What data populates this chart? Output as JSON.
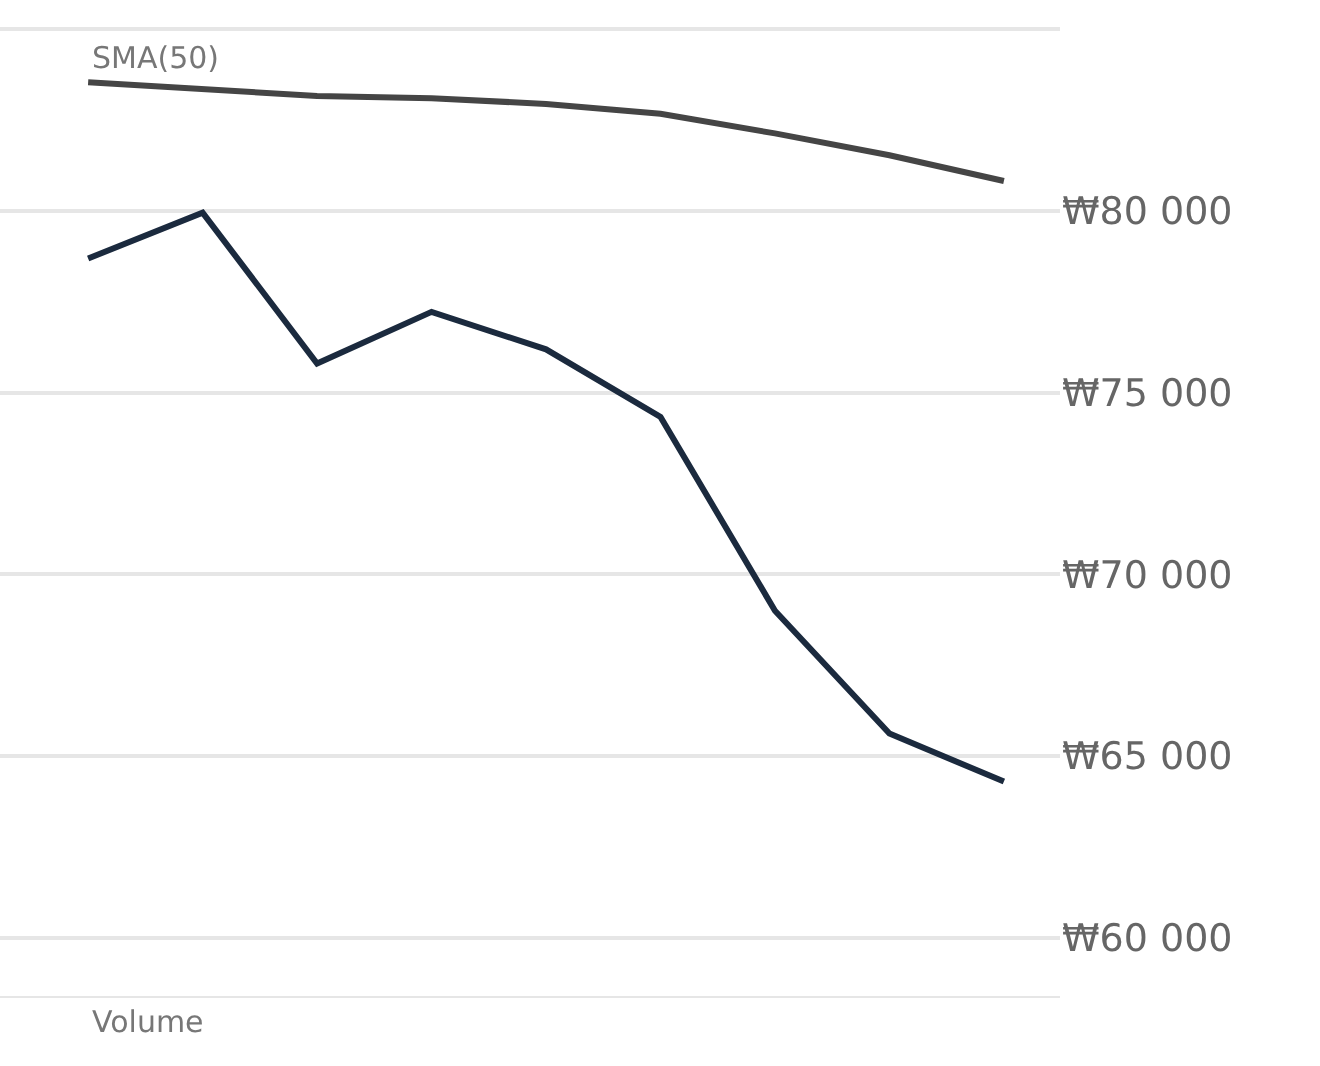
{
  "chart_data": {
    "type": "line",
    "categories": [
      null,
      null,
      null,
      null,
      null,
      null,
      null,
      null,
      null
    ],
    "series": [
      {
        "name": "SMA(50)",
        "color": "#454545",
        "values": [
          83540,
          null,
          83160,
          83100,
          82940,
          82670,
          82130,
          81530,
          80820
        ]
      },
      {
        "color": "#1b2a3e",
        "values": [
          78690,
          79950,
          75800,
          77220,
          76190,
          74330,
          69000,
          65620,
          64300
        ]
      }
    ],
    "ylim": [
      58400,
      85800
    ],
    "yticks": [
      {
        "value": 60000,
        "label": "₩60 000"
      },
      {
        "value": 65000,
        "label": "₩65 000"
      },
      {
        "value": 70000,
        "label": "₩70 000"
      },
      {
        "value": 75000,
        "label": "₩75 000"
      },
      {
        "value": 80000,
        "label": "₩80 000"
      },
      {
        "value": 85000,
        "label": null
      }
    ],
    "grid": "y",
    "marker": "none",
    "line_style": "solid",
    "annotations": [
      "Volume"
    ]
  }
}
